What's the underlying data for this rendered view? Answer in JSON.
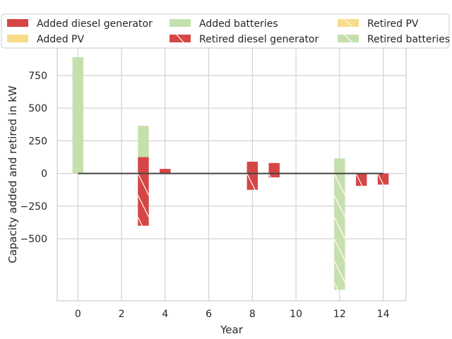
{
  "chart_data": {
    "type": "bar",
    "xlabel": "Year",
    "ylabel": "Capacity added and retired in kW",
    "xticks": [
      0,
      2,
      4,
      6,
      8,
      10,
      12,
      14
    ],
    "yticks": [
      -500,
      -250,
      0,
      250,
      500,
      750
    ],
    "xlim": [
      -0.95,
      15.05
    ],
    "ylim": [
      -975,
      960
    ],
    "grid": true,
    "legend_position": "top",
    "colors": {
      "diesel": "#d64545",
      "pv": "#f7dd8a",
      "batteries": "#c5e0ad",
      "zero_line": "#444444",
      "grid": "#d2d2d2"
    },
    "series": [
      {
        "name": "Added diesel generator",
        "color_key": "diesel",
        "hatch": false,
        "points": [
          {
            "x": 3,
            "y": 125
          },
          {
            "x": 4,
            "y": 35
          },
          {
            "x": 8,
            "y": 90
          },
          {
            "x": 9,
            "y": 80
          }
        ]
      },
      {
        "name": "Added PV",
        "color_key": "pv",
        "hatch": false,
        "points": []
      },
      {
        "name": "Added batteries",
        "color_key": "batteries",
        "hatch": false,
        "points": [
          {
            "x": 0,
            "y": 890
          },
          {
            "x": 3,
            "y": 240,
            "base": 125
          },
          {
            "x": 12,
            "y": 115
          }
        ]
      },
      {
        "name": "Retired diesel generator",
        "color_key": "diesel",
        "hatch": true,
        "points": [
          {
            "x": 3,
            "y": -400
          },
          {
            "x": 8,
            "y": -125
          },
          {
            "x": 9,
            "y": -30
          },
          {
            "x": 13,
            "y": -95
          },
          {
            "x": 14,
            "y": -85
          }
        ]
      },
      {
        "name": "Retired PV",
        "color_key": "pv",
        "hatch": true,
        "points": []
      },
      {
        "name": "Retired batteries",
        "color_key": "batteries",
        "hatch": true,
        "points": [
          {
            "x": 12,
            "y": -890
          }
        ]
      }
    ],
    "zero_line": {
      "x_start": 0,
      "x_end": 14,
      "y": 0
    }
  }
}
